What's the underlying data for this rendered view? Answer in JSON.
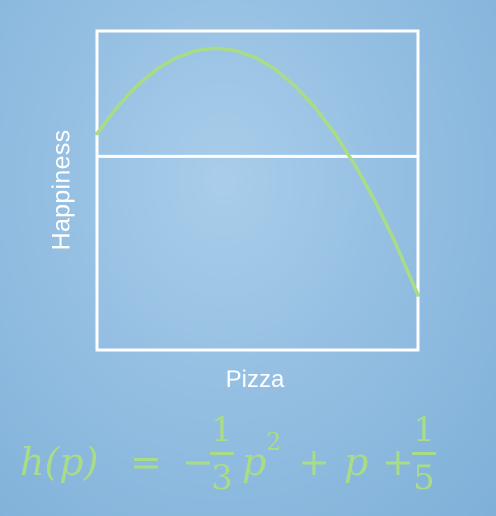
{
  "chart_data": {
    "type": "line",
    "title": "",
    "xlabel": "Pizza",
    "ylabel": "Happiness",
    "function": "h(p) = -1/3 p^2 + p + 1/5",
    "xlim": [
      0,
      4.05
    ],
    "ylim": [
      -1.7,
      1.1
    ],
    "baseline": 0,
    "grid": false,
    "series": [
      {
        "x": [
          0,
          0.25,
          0.5,
          0.75,
          1,
          1.25,
          1.5,
          1.75,
          2,
          2.25,
          2.5,
          2.75,
          3,
          3.25,
          3.5,
          3.75,
          4.05
        ],
        "values": [
          0.2,
          0.429,
          0.617,
          0.763,
          0.867,
          0.929,
          0.95,
          0.929,
          0.867,
          0.763,
          0.617,
          0.429,
          0.2,
          -0.071,
          -0.383,
          -0.738,
          -1.217
        ]
      }
    ],
    "colors": {
      "curve": "#a9dc86",
      "frame": "#ffffff",
      "baseline": "#ffffff"
    }
  },
  "formula": {
    "lhs": "h(p)",
    "equals": "=",
    "minus": "−",
    "frac1_num": "1",
    "frac1_den": "3",
    "term1": "p",
    "exponent": "2",
    "plus1": "+",
    "term2": "p",
    "plus2": "+",
    "frac2_num": "1",
    "frac2_den": "5"
  }
}
